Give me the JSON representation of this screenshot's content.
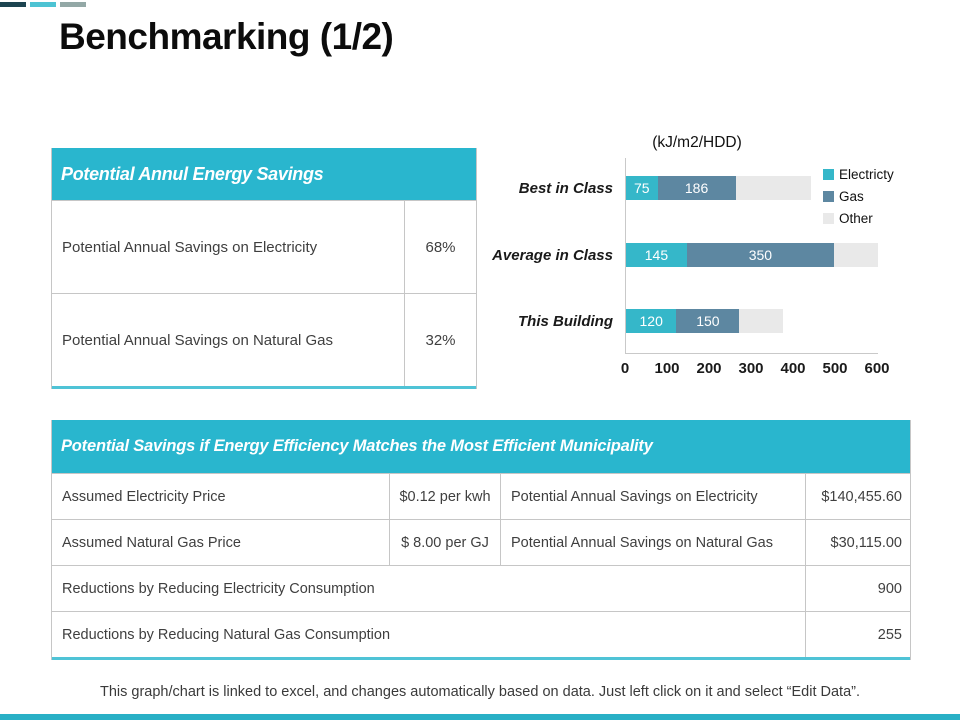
{
  "slide": {
    "title": "Benchmarking (1/2)",
    "footer": "This graph/chart is linked to excel, and changes automatically based on data. Just left click on it and select “Edit Data”."
  },
  "colors": {
    "accent_cyan": "#29b6ce",
    "table_bottom_line": "#4fc3d6",
    "bottom_bar": "#29b0c6",
    "bar_electricity": "#35b7c9",
    "bar_gas": "#5d87a1",
    "bar_other": "#e9e9e9"
  },
  "decorations": {
    "dashes": [
      "#1c4450",
      "#4dc3d3",
      "#93a8a6"
    ]
  },
  "savings_table": {
    "header": "Potential Annul Energy Savings",
    "rows": [
      {
        "label": "Potential Annual Savings on Electricity",
        "value": "68%"
      },
      {
        "label": "Potential Annual Savings on Natural Gas",
        "value": "32%"
      }
    ]
  },
  "chart_data": {
    "type": "bar",
    "orientation": "horizontal",
    "stacked": true,
    "title": "(kJ/m2/HDD)",
    "categories": [
      "Best in Class",
      "Average in Class",
      "This Building"
    ],
    "series": [
      {
        "name": "Electricty",
        "color": "#35b7c9",
        "show_values": true,
        "values": [
          75,
          145,
          120
        ]
      },
      {
        "name": "Gas",
        "color": "#5d87a1",
        "show_values": true,
        "values": [
          186,
          350,
          150
        ]
      },
      {
        "name": "Other",
        "color": "#e9e9e9",
        "show_values": false,
        "values": [
          180,
          105,
          105
        ]
      }
    ],
    "xlim": [
      0,
      600
    ],
    "x_ticks": [
      0,
      100,
      200,
      300,
      400,
      500,
      600
    ],
    "legend_position": "right",
    "grid": false
  },
  "efficiency_table": {
    "header": "Potential Savings if Energy Efficiency Matches the Most Efficient  Municipality",
    "rows": [
      {
        "c1": "Assumed Electricity Price",
        "c2": "$0.12 per kwh",
        "c3": "Potential Annual Savings on Electricity",
        "c4": "$140,455.60"
      },
      {
        "c1": "Assumed Natural Gas Price",
        "c2": "$ 8.00 per GJ",
        "c3": "Potential Annual Savings on Natural Gas",
        "c4": "$30,115.00"
      },
      {
        "label": "Reductions by Reducing Electricity Consumption",
        "value": "900"
      },
      {
        "label": "Reductions by Reducing Natural Gas Consumption",
        "value": "255"
      }
    ]
  }
}
